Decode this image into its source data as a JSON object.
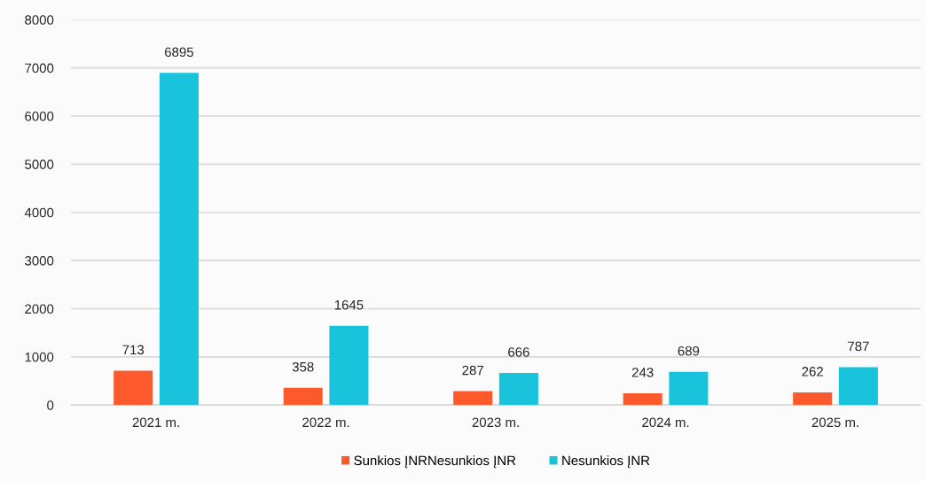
{
  "chart_data": {
    "type": "bar",
    "categories": [
      "2021 m.",
      "2022 m.",
      "2023 m.",
      "2024 m.",
      "2025 m."
    ],
    "series": [
      {
        "name": "Sunkios ĮNRNesunkios ĮNR",
        "color": "#fc5a2c",
        "values": [
          713,
          358,
          287,
          243,
          262
        ]
      },
      {
        "name": "Nesunkios ĮNR",
        "color": "#19c3dc",
        "values": [
          6895,
          1645,
          666,
          689,
          787
        ]
      }
    ],
    "ylim": [
      0,
      8000
    ],
    "yticks": [
      0,
      1000,
      2000,
      3000,
      4000,
      5000,
      6000,
      7000,
      8000
    ],
    "grid": "y",
    "legend": "bottom",
    "data_labels": true
  }
}
